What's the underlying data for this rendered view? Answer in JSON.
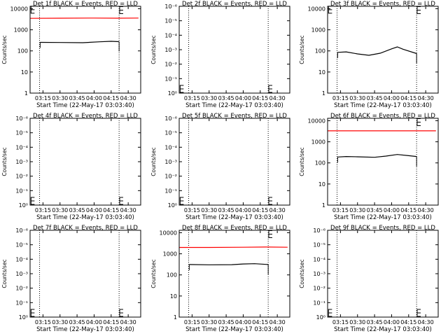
{
  "chart_data": [
    {
      "type": "line",
      "title": "Det 1f BLACK = Events, RED = LLD",
      "xlabel": "Start Time (22-May-17 03:03:40)",
      "ylabel": "Counts/sec",
      "y_scale": "log",
      "yticks": [
        "1",
        "10",
        "100",
        "1000",
        "10000"
      ],
      "xticks": [
        "03:15",
        "03:30",
        "03:45",
        "04:00",
        "04:15",
        "04:30"
      ],
      "xlim": [
        "03:03:40",
        "04:41:00"
      ],
      "ylim": [
        1,
        13000
      ],
      "vlines": [
        "03:12:00",
        "04:22:00"
      ],
      "series": [
        {
          "color": "#ff0000",
          "x": [
            "03:04:00",
            "03:30:00",
            "04:00:00",
            "04:20:00",
            "04:39:00"
          ],
          "y": [
            3500,
            3550,
            3600,
            3550,
            3600
          ]
        },
        {
          "color": "#000000",
          "x": [
            "03:12:30",
            "03:30:00",
            "03:50:00",
            "04:05:00",
            "04:15:00",
            "04:22:00"
          ],
          "y": [
            255,
            250,
            245,
            270,
            285,
            275
          ]
        }
      ],
      "markers": [
        {
          "x": "03:04:30",
          "y": 9000
        },
        {
          "x": "04:22:30",
          "y": 8500
        }
      ]
    },
    {
      "type": "line",
      "title": "Det 2f BLACK = Events, RED = LLD",
      "xlabel": "Start Time (22-May-17 03:03:40)",
      "ylabel": "Counts/sec",
      "y_scale": "log",
      "yticks": [
        "10⁰",
        "10⁻¹",
        "10⁻²",
        "10⁻³",
        "10⁻⁴",
        "10⁻⁵",
        "10⁻⁶"
      ],
      "xticks": [
        "03:15",
        "03:30",
        "03:45",
        "04:00",
        "04:15",
        "04:30"
      ],
      "xlim": [
        "03:03:40",
        "04:41:00"
      ],
      "vlines": [
        "03:12:00",
        "04:22:00"
      ],
      "series": [],
      "markers": [
        {
          "x": "03:04:30",
          "y": "10⁰"
        },
        {
          "x": "04:22:30",
          "y": "10⁰"
        }
      ]
    },
    {
      "type": "line",
      "title": "Det 3f BLACK = Events, RED = LLD",
      "xlabel": "Start Time (22-May-17 03:03:40)",
      "ylabel": "Counts/sec",
      "y_scale": "log",
      "yticks": [
        "1",
        "10",
        "100",
        "1000",
        "10000"
      ],
      "xticks": [
        "03:15",
        "03:30",
        "03:45",
        "04:00",
        "04:15",
        "04:30"
      ],
      "xlim": [
        "03:03:40",
        "04:41:00"
      ],
      "ylim": [
        1,
        13000
      ],
      "vlines": [
        "03:12:00",
        "04:22:00"
      ],
      "series": [
        {
          "color": "#000000",
          "x": [
            "03:12:30",
            "03:20:00",
            "03:30:00",
            "03:40:00",
            "03:50:00",
            "04:00:00",
            "04:05:00",
            "04:10:00",
            "04:22:00"
          ],
          "y": [
            85,
            90,
            72,
            62,
            78,
            125,
            155,
            120,
            75
          ]
        }
      ],
      "markers": [
        {
          "x": "03:04:30",
          "y": 9000
        },
        {
          "x": "04:22:30",
          "y": 8500
        }
      ]
    },
    {
      "type": "line",
      "title": "Det 4f BLACK = Events, RED = LLD",
      "xlabel": "Start Time (22-May-17 03:03:40)",
      "ylabel": "Counts/sec",
      "y_scale": "log",
      "yticks": [
        "10⁰",
        "10⁻¹",
        "10⁻²",
        "10⁻³",
        "10⁻⁴",
        "10⁻⁵",
        "10⁻⁶"
      ],
      "xticks": [
        "03:15",
        "03:30",
        "03:45",
        "04:00",
        "04:15",
        "04:30"
      ],
      "xlim": [
        "03:03:40",
        "04:41:00"
      ],
      "vlines": [
        "03:12:00",
        "04:22:00"
      ],
      "series": [],
      "markers": [
        {
          "x": "03:04:30",
          "y": "10⁰"
        },
        {
          "x": "04:22:30",
          "y": "10⁰"
        }
      ]
    },
    {
      "type": "line",
      "title": "Det 5f BLACK = Events, RED = LLD",
      "xlabel": "Start Time (22-May-17 03:03:40)",
      "ylabel": "Counts/sec",
      "y_scale": "log",
      "yticks": [
        "10⁰",
        "10⁻¹",
        "10⁻²",
        "10⁻³",
        "10⁻⁴",
        "10⁻⁵",
        "10⁻⁶"
      ],
      "xticks": [
        "03:15",
        "03:30",
        "03:45",
        "04:00",
        "04:15",
        "04:30"
      ],
      "xlim": [
        "03:03:40",
        "04:41:00"
      ],
      "vlines": [
        "03:12:00",
        "04:22:00"
      ],
      "series": [],
      "markers": [
        {
          "x": "03:04:30",
          "y": "10⁰"
        },
        {
          "x": "04:22:30",
          "y": "10⁰"
        }
      ]
    },
    {
      "type": "line",
      "title": "Det 6f BLACK = Events, RED = LLD",
      "xlabel": "Start Time (22-May-17 03:03:40)",
      "ylabel": "Counts/sec",
      "y_scale": "log",
      "yticks": [
        "1",
        "10",
        "100",
        "1000",
        "10000"
      ],
      "xticks": [
        "03:15",
        "03:30",
        "03:45",
        "04:00",
        "04:15",
        "04:30"
      ],
      "xlim": [
        "03:03:40",
        "04:41:00"
      ],
      "ylim": [
        1,
        13000
      ],
      "vlines": [
        "03:12:00",
        "04:22:00"
      ],
      "series": [
        {
          "color": "#ff0000",
          "x": [
            "03:04:00",
            "03:30:00",
            "04:00:00",
            "04:20:00",
            "04:39:00"
          ],
          "y": [
            3300,
            3300,
            3300,
            3300,
            3300
          ]
        },
        {
          "color": "#000000",
          "x": [
            "03:12:30",
            "03:20:00",
            "03:30:00",
            "03:45:00",
            "03:55:00",
            "04:05:00",
            "04:15:00",
            "04:22:00"
          ],
          "y": [
            190,
            200,
            195,
            185,
            210,
            250,
            220,
            200
          ]
        }
      ],
      "markers": [
        {
          "x": "04:22:30",
          "y": 8500
        }
      ]
    },
    {
      "type": "line",
      "title": "Det 7f BLACK = Events, RED = LLD",
      "xlabel": "Start Time (22-May-17 03:03:40)",
      "ylabel": "Counts/sec",
      "y_scale": "log",
      "yticks": [
        "10⁰",
        "10⁻¹",
        "10⁻²",
        "10⁻³",
        "10⁻⁴",
        "10⁻⁵",
        "10⁻⁶"
      ],
      "xticks": [
        "03:15",
        "03:30",
        "03:45",
        "04:00",
        "04:15",
        "04:30"
      ],
      "xlim": [
        "03:03:40",
        "04:41:00"
      ],
      "vlines": [
        "03:12:00",
        "04:22:00"
      ],
      "series": [],
      "markers": [
        {
          "x": "03:04:30",
          "y": "10⁰"
        },
        {
          "x": "04:22:30",
          "y": "10⁰"
        }
      ]
    },
    {
      "type": "line",
      "title": "Det 8f BLACK = Events, RED = LLD",
      "xlabel": "Start Time (22-May-17 03:03:40)",
      "ylabel": "Counts/sec",
      "y_scale": "log",
      "yticks": [
        "1",
        "10",
        "100",
        "1000",
        "10000"
      ],
      "xticks": [
        "03:15",
        "03:30",
        "03:45",
        "04:00",
        "04:15",
        "04:30"
      ],
      "xlim": [
        "03:03:40",
        "04:41:00"
      ],
      "ylim": [
        1,
        13000
      ],
      "vlines": [
        "03:12:00",
        "04:22:00"
      ],
      "series": [
        {
          "color": "#ff0000",
          "x": [
            "03:04:00",
            "03:30:00",
            "04:00:00",
            "04:20:00",
            "04:39:00"
          ],
          "y": [
            2000,
            2000,
            2050,
            2100,
            2050
          ]
        },
        {
          "color": "#000000",
          "x": [
            "03:12:30",
            "03:30:00",
            "03:50:00",
            "04:00:00",
            "04:10:00",
            "04:22:00"
          ],
          "y": [
            310,
            300,
            305,
            330,
            340,
            310
          ]
        }
      ],
      "markers": [
        {
          "x": "04:22:30",
          "y": 8500
        }
      ]
    },
    {
      "type": "line",
      "title": "Det 9f BLACK = Events, RED = LLD",
      "xlabel": "Start Time (22-May-17 03:03:40)",
      "ylabel": "Counts/sec",
      "y_scale": "log",
      "yticks": [
        "10⁰",
        "10⁻¹",
        "10⁻²",
        "10⁻³",
        "10⁻⁴",
        "10⁻⁵",
        "10⁻⁶"
      ],
      "xticks": [
        "03:15",
        "03:30",
        "03:45",
        "04:00",
        "04:15",
        "04:30"
      ],
      "xlim": [
        "03:03:40",
        "04:41:00"
      ],
      "vlines": [
        "03:12:00",
        "04:22:00"
      ],
      "series": [],
      "markers": [
        {
          "x": "03:04:30",
          "y": "10⁰"
        },
        {
          "x": "04:22:30",
          "y": "10⁰"
        }
      ]
    }
  ]
}
